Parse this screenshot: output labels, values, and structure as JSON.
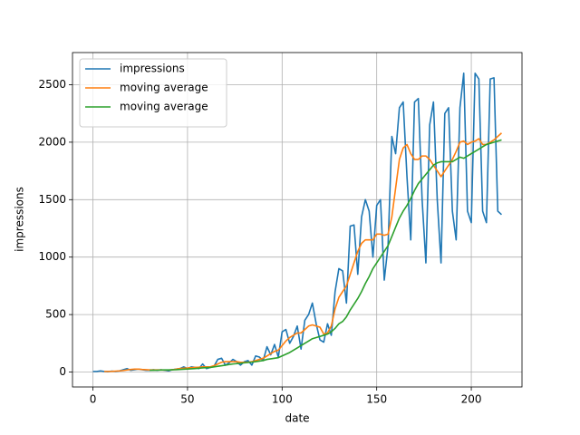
{
  "chart_data": {
    "type": "line",
    "x_label": "date",
    "y_label": "impressions",
    "x": [
      0,
      2,
      4,
      6,
      8,
      10,
      12,
      14,
      16,
      18,
      20,
      22,
      24,
      26,
      28,
      30,
      32,
      34,
      36,
      38,
      40,
      42,
      44,
      46,
      48,
      50,
      52,
      54,
      56,
      58,
      60,
      62,
      64,
      66,
      68,
      70,
      72,
      74,
      76,
      78,
      80,
      82,
      84,
      86,
      88,
      90,
      92,
      94,
      96,
      98,
      100,
      102,
      104,
      106,
      108,
      110,
      112,
      114,
      116,
      118,
      120,
      122,
      124,
      126,
      128,
      130,
      132,
      134,
      136,
      138,
      140,
      142,
      144,
      146,
      148,
      150,
      152,
      154,
      156,
      158,
      160,
      162,
      164,
      166,
      168,
      170,
      172,
      174,
      176,
      178,
      180,
      182,
      184,
      186,
      188,
      190,
      192,
      194,
      196,
      198,
      200,
      202,
      204,
      206,
      208,
      210,
      212,
      214,
      216
    ],
    "series": [
      {
        "name": "impressions",
        "color": "#1f77b4",
        "values": [
          5,
          5,
          10,
          5,
          3,
          8,
          5,
          10,
          20,
          30,
          15,
          20,
          25,
          20,
          15,
          15,
          20,
          15,
          20,
          15,
          10,
          20,
          25,
          30,
          45,
          30,
          45,
          40,
          30,
          70,
          30,
          40,
          50,
          110,
          120,
          60,
          80,
          110,
          90,
          60,
          90,
          100,
          60,
          140,
          130,
          100,
          220,
          150,
          240,
          130,
          350,
          370,
          250,
          310,
          400,
          200,
          450,
          500,
          600,
          420,
          280,
          260,
          420,
          320,
          700,
          900,
          880,
          600,
          1270,
          1280,
          850,
          1350,
          1500,
          1400,
          1000,
          1450,
          1500,
          800,
          1100,
          2050,
          1900,
          2300,
          2350,
          1700,
          1150,
          2350,
          2380,
          1500,
          950,
          2150,
          2350,
          1500,
          950,
          2250,
          2300,
          1400,
          1150,
          2300,
          2600,
          1400,
          1300,
          2600,
          2550,
          1400,
          1300,
          2550,
          2560,
          1400,
          1370
        ]
      },
      {
        "name": "moving average",
        "color": "#ff7f0e",
        "values": [
          null,
          null,
          null,
          5,
          5,
          6,
          8,
          10,
          13,
          18,
          22,
          25,
          25,
          22,
          20,
          18,
          18,
          18,
          18,
          17,
          17,
          20,
          25,
          30,
          33,
          35,
          38,
          40,
          42,
          45,
          45,
          45,
          55,
          70,
          85,
          90,
          90,
          90,
          90,
          85,
          85,
          85,
          90,
          100,
          110,
          120,
          140,
          160,
          180,
          190,
          230,
          270,
          300,
          320,
          340,
          340,
          370,
          400,
          410,
          400,
          390,
          330,
          340,
          400,
          550,
          650,
          700,
          750,
          850,
          950,
          1050,
          1120,
          1150,
          1150,
          1150,
          1200,
          1200,
          1190,
          1200,
          1350,
          1600,
          1850,
          1950,
          1980,
          1900,
          1850,
          1850,
          1880,
          1880,
          1850,
          1800,
          1750,
          1700,
          1750,
          1800,
          1850,
          1920,
          2000,
          2010,
          1980,
          2000,
          2010,
          2030,
          1980,
          1980,
          2000,
          2020,
          2050,
          2080
        ]
      },
      {
        "name": "moving average",
        "color": "#2ca02c",
        "values": [
          null,
          null,
          null,
          null,
          null,
          null,
          null,
          null,
          null,
          null,
          null,
          null,
          null,
          null,
          null,
          15,
          15,
          16,
          17,
          18,
          18,
          19,
          20,
          22,
          24,
          26,
          28,
          30,
          33,
          36,
          38,
          40,
          45,
          50,
          55,
          60,
          65,
          70,
          73,
          76,
          80,
          83,
          86,
          90,
          95,
          100,
          110,
          115,
          120,
          125,
          140,
          155,
          170,
          190,
          210,
          230,
          250,
          270,
          290,
          300,
          310,
          320,
          330,
          350,
          380,
          420,
          440,
          480,
          540,
          590,
          640,
          700,
          770,
          830,
          900,
          950,
          1000,
          1050,
          1100,
          1180,
          1260,
          1340,
          1400,
          1450,
          1510,
          1580,
          1640,
          1680,
          1720,
          1760,
          1800,
          1820,
          1830,
          1830,
          1830,
          1830,
          1850,
          1870,
          1860,
          1880,
          1900,
          1920,
          1940,
          1960,
          1980,
          1990,
          2000,
          2010,
          2020
        ]
      }
    ],
    "xlim": [
      -10.8,
      226.8
    ],
    "xticks": [
      0,
      50,
      100,
      150,
      200
    ],
    "ylim": [
      -130,
      2780
    ],
    "yticks": [
      0,
      500,
      1000,
      1500,
      2000,
      2500
    ],
    "grid": true,
    "legend": "upper left"
  }
}
